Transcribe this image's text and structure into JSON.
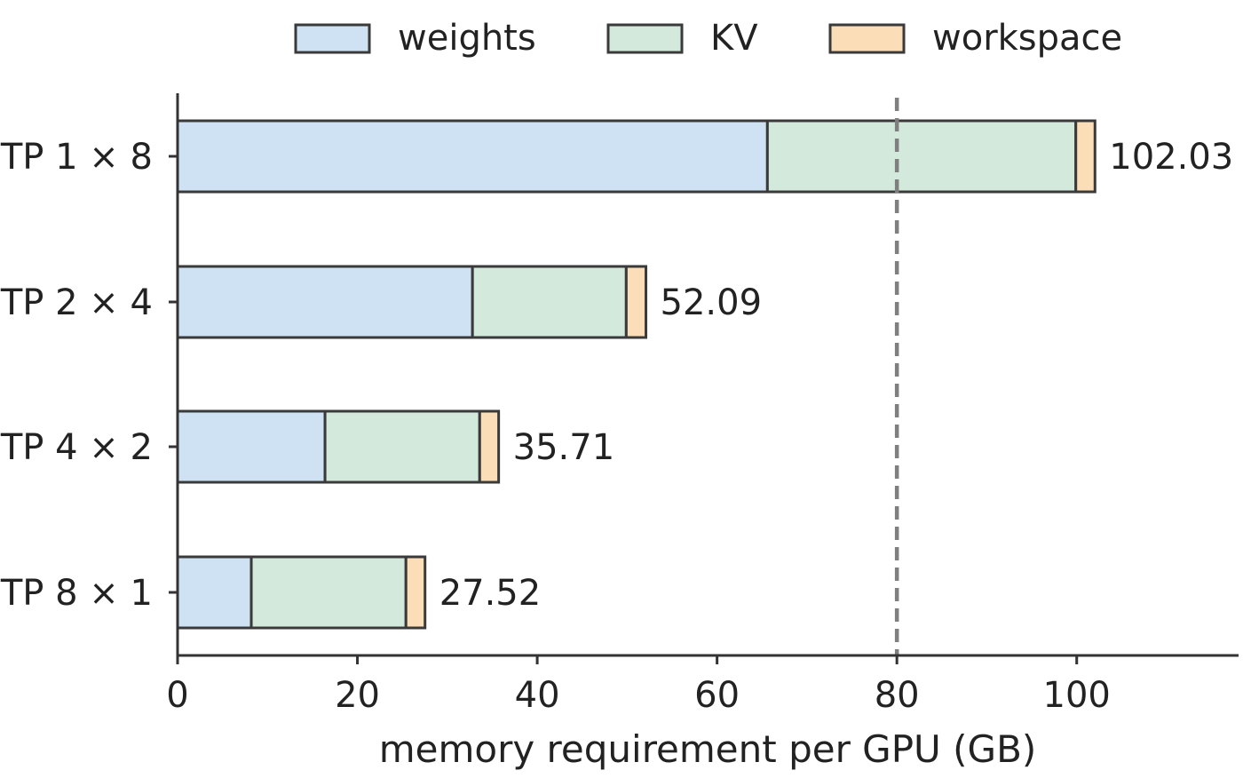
{
  "chart_data": {
    "type": "bar",
    "orientation": "horizontal",
    "stacked": true,
    "categories": [
      "TP 1 × 8",
      "TP 2 × 4",
      "TP 4 × 2",
      "TP 8 × 1"
    ],
    "series": [
      {
        "name": "weights",
        "color": "#cfe2f3",
        "values": [
          65.6,
          32.8,
          16.4,
          8.2
        ]
      },
      {
        "name": "KV",
        "color": "#d3e9dc",
        "values": [
          34.3,
          17.1,
          17.2,
          17.2
        ]
      },
      {
        "name": "workspace",
        "color": "#fbddb8",
        "values": [
          2.13,
          2.19,
          2.11,
          2.12
        ]
      }
    ],
    "totals": [
      102.03,
      52.09,
      35.71,
      27.52
    ],
    "total_labels": [
      "102.03",
      "52.09",
      "35.71",
      "27.52"
    ],
    "xlabel": "memory requirement per GPU (GB)",
    "ylabel": "",
    "xlim": [
      0,
      118
    ],
    "xticks": [
      0,
      20,
      40,
      60,
      80,
      100
    ],
    "xtick_labels": [
      "0",
      "20",
      "40",
      "60",
      "80",
      "100"
    ],
    "reference_line": {
      "x": 80,
      "style": "dashed",
      "color": "#7f7f7f"
    },
    "legend": {
      "position": "top",
      "entries": [
        "weights",
        "KV",
        "workspace"
      ]
    },
    "grid": false
  }
}
